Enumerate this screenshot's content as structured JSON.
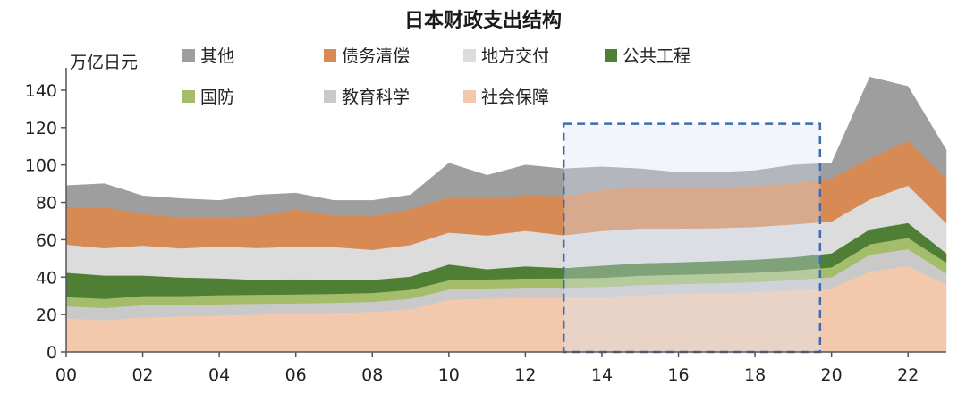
{
  "chart_data": {
    "type": "area",
    "stacked": true,
    "title": "日本财政支出结构",
    "ylabel": "万亿日元",
    "xlabel": "",
    "ylim": [
      0,
      150
    ],
    "yticks": [
      0,
      20,
      40,
      60,
      80,
      100,
      120,
      140
    ],
    "x": [
      2000,
      2001,
      2002,
      2003,
      2004,
      2005,
      2006,
      2007,
      2008,
      2009,
      2010,
      2011,
      2012,
      2013,
      2014,
      2015,
      2016,
      2017,
      2018,
      2019,
      2020,
      2021,
      2022,
      2023
    ],
    "xticks": [
      {
        "year": 2000,
        "label": "00"
      },
      {
        "year": 2002,
        "label": "02"
      },
      {
        "year": 2004,
        "label": "04"
      },
      {
        "year": 2006,
        "label": "06"
      },
      {
        "year": 2008,
        "label": "08"
      },
      {
        "year": 2010,
        "label": "10"
      },
      {
        "year": 2012,
        "label": "12"
      },
      {
        "year": 2014,
        "label": "14"
      },
      {
        "year": 2016,
        "label": "16"
      },
      {
        "year": 2018,
        "label": "18"
      },
      {
        "year": 2020,
        "label": "20"
      },
      {
        "year": 2022,
        "label": "22"
      }
    ],
    "series": [
      {
        "name": "社会保障",
        "color": "#f2c9ad",
        "values": [
          18,
          17,
          18.5,
          19,
          19.5,
          20,
          20.5,
          21,
          21.5,
          23,
          28,
          28.5,
          29,
          29,
          29.5,
          30.5,
          31,
          31.5,
          32,
          33,
          34,
          43,
          46,
          36
        ]
      },
      {
        "name": "教育科学",
        "color": "#c9c9c9",
        "values": [
          6.5,
          6.5,
          6.5,
          6,
          6,
          5.8,
          5.5,
          5.3,
          5.3,
          5.5,
          5.5,
          5.5,
          5.5,
          5.5,
          5.3,
          5.3,
          5.3,
          5.3,
          5.3,
          5.5,
          6,
          9,
          9,
          6
        ]
      },
      {
        "name": "国防",
        "color": "#a3bd6b",
        "values": [
          4.9,
          4.9,
          4.9,
          4.9,
          4.9,
          4.8,
          4.8,
          4.8,
          4.8,
          4.8,
          4.8,
          4.8,
          4.8,
          4.9,
          4.9,
          5,
          5,
          5,
          5.1,
          5.1,
          5.3,
          5.6,
          6,
          5.8
        ]
      },
      {
        "name": "公共工程",
        "color": "#4f7f35",
        "values": [
          13,
          12.5,
          11,
          10,
          9,
          8,
          8,
          7.5,
          7,
          7,
          8.5,
          5.5,
          6.5,
          5.5,
          6.5,
          6.7,
          6.7,
          6.9,
          7,
          7.1,
          7.5,
          8,
          8,
          5
        ]
      },
      {
        "name": "地方交付",
        "color": "#dcdcdc",
        "values": [
          15,
          14.6,
          16,
          15.5,
          17,
          17,
          17.5,
          17.5,
          16,
          17,
          17,
          18,
          19,
          17.5,
          18.5,
          18.5,
          18,
          17.5,
          17.5,
          17.5,
          17,
          16,
          20,
          16
        ]
      },
      {
        "name": "债务清偿",
        "color": "#d88a55",
        "values": [
          20,
          22,
          17,
          16.5,
          15.5,
          17,
          20,
          17,
          18,
          19,
          19,
          20,
          19,
          21,
          22,
          22,
          22,
          22,
          22,
          22,
          23,
          22,
          24,
          24
        ]
      },
      {
        "name": "其他",
        "color": "#9e9e9e",
        "values": [
          11.6,
          12.5,
          9.6,
          10.1,
          9.1,
          11.4,
          8.7,
          7.9,
          8.4,
          7.7,
          18.2,
          12.2,
          16.2,
          14.6,
          12.3,
          10.0,
          8.0,
          7.8,
          8.1,
          9.8,
          8.2,
          43.4,
          29.0,
          15.2
        ]
      }
    ],
    "legend": {
      "placement": "top",
      "rows": [
        [
          "其他",
          "债务清偿",
          "地方交付",
          "公共工程"
        ],
        [
          "国防",
          "教育科学",
          "社会保障"
        ]
      ]
    },
    "highlight": {
      "x_start": 2013,
      "x_end": 2019.7,
      "y_start": 0,
      "y_end": 122,
      "style": "dashed",
      "color": "#3f6bb0"
    }
  }
}
